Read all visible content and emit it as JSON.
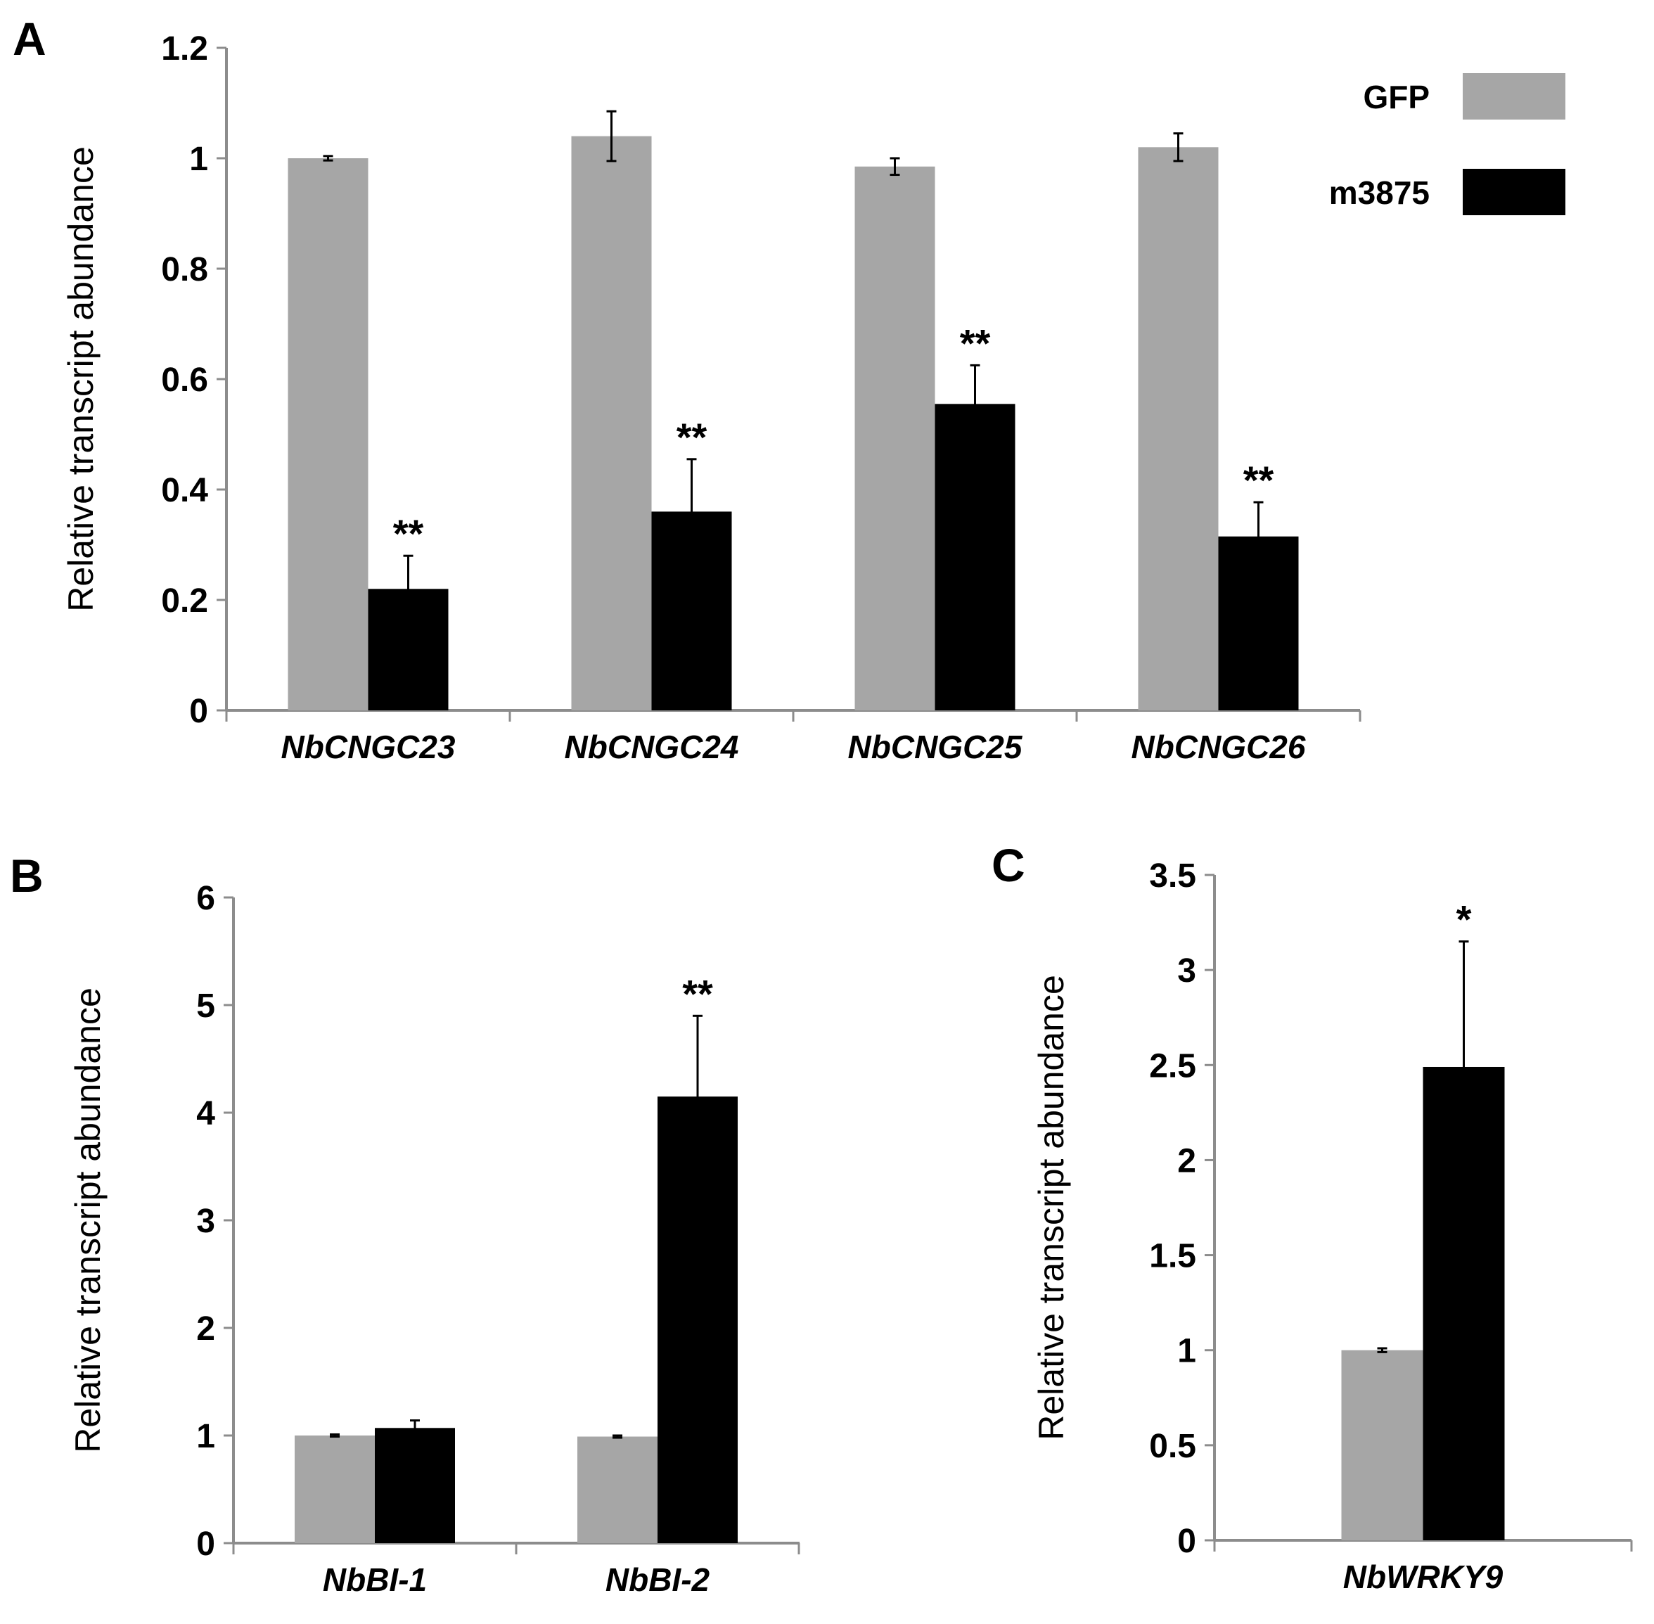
{
  "colors": {
    "GFP": "#a6a6a6",
    "m3875": "#000000",
    "axis": "#8c8c8c"
  },
  "legend": [
    {
      "name": "GFP",
      "color": "#a6a6a6"
    },
    {
      "name": "m3875",
      "color": "#000000"
    }
  ],
  "chart_data": [
    {
      "panel": "A",
      "type": "bar",
      "ylabel": "Relative transcript abundance",
      "ylim": [
        0,
        1.2
      ],
      "yticks": [
        "0",
        "0.2",
        "0.4",
        "0.6",
        "0.8",
        "1",
        "1.2"
      ],
      "categories": [
        "NbCNGC23",
        "NbCNGC24",
        "NbCNGC25",
        "NbCNGC26"
      ],
      "series": [
        {
          "name": "GFP",
          "values": [
            1.0,
            1.04,
            0.985,
            1.02
          ],
          "errors": [
            0.004,
            0.045,
            0.015,
            0.025
          ],
          "sig": [
            "",
            "",
            "",
            ""
          ]
        },
        {
          "name": "m3875",
          "values": [
            0.22,
            0.36,
            0.555,
            0.315
          ],
          "errors": [
            0.06,
            0.095,
            0.07,
            0.062
          ],
          "sig": [
            "**",
            "**",
            "**",
            "**"
          ]
        }
      ]
    },
    {
      "panel": "B",
      "type": "bar",
      "ylabel": "Relative transcript abundance",
      "ylim": [
        0,
        6
      ],
      "yticks": [
        "0",
        "1",
        "2",
        "3",
        "4",
        "5",
        "6"
      ],
      "categories": [
        "NbBI-1",
        "NbBI-2"
      ],
      "series": [
        {
          "name": "GFP",
          "values": [
            1.0,
            0.99
          ],
          "errors": [
            0.01,
            0.01
          ],
          "sig": [
            "",
            ""
          ]
        },
        {
          "name": "m3875",
          "values": [
            1.07,
            4.15
          ],
          "errors": [
            0.07,
            0.75
          ],
          "sig": [
            "",
            "**"
          ]
        }
      ]
    },
    {
      "panel": "C",
      "type": "bar",
      "ylabel": "Relative transcript abundance",
      "ylim": [
        0,
        3.5
      ],
      "yticks": [
        "0",
        "0.5",
        "1",
        "1.5",
        "2",
        "2.5",
        "3",
        "3.5"
      ],
      "categories": [
        "NbWRKY9"
      ],
      "series": [
        {
          "name": "GFP",
          "values": [
            1.0
          ],
          "errors": [
            0.01
          ],
          "sig": [
            ""
          ]
        },
        {
          "name": "m3875",
          "values": [
            2.49
          ],
          "errors": [
            0.66
          ],
          "sig": [
            "*"
          ]
        }
      ]
    }
  ]
}
